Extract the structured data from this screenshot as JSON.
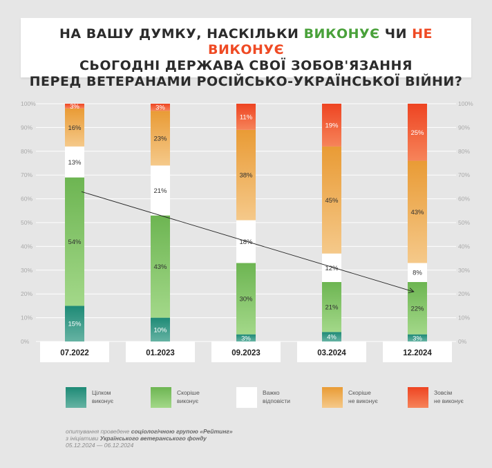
{
  "title": {
    "line1_part1": "НА ВАШУ ДУМКУ, НАСКІЛЬКИ ",
    "line1_green": "ВИКОНУЄ",
    "line1_part2": " ЧИ ",
    "line1_red": "НЕ ВИКОНУЄ",
    "line2": "СЬОГОДНІ ДЕРЖАВА СВОЇ ЗОБОВ'ЯЗАННЯ",
    "line3": "ПЕРЕД ВЕТЕРАНАМИ РОСІЙСЬКО-УКРАЇНСЬКОЇ ВІЙНИ?"
  },
  "colors": {
    "fully": "#3b9a86",
    "rather": "#7fc465",
    "hard": "#ffffff",
    "rather_not": "#eda94c",
    "not_at_all": "#f05a2e",
    "grid": "#ffffff",
    "axis_text": "#a9a9a9"
  },
  "legend": [
    {
      "key": "fully",
      "label": "Цілком\nвиконує"
    },
    {
      "key": "rather",
      "label": "Скоріше\nвиконує"
    },
    {
      "key": "hard",
      "label": "Важко\nвідповісти"
    },
    {
      "key": "rather_not",
      "label": "Скоріше\nне виконує"
    },
    {
      "key": "not_at_all",
      "label": "Зовсім\nне виконує"
    }
  ],
  "footer": {
    "line1_prefix": "опитування проведене ",
    "line1_bold": "соціологічною групою «Рейтинг»",
    "line2_prefix": "з ініціативи ",
    "line2_bold": "Українського ветеранського фонду",
    "line3": "05.12.2024 — 06.12.2024"
  },
  "chart_data": {
    "type": "bar",
    "stacked": true,
    "categories": [
      "07.2022",
      "01.2023",
      "09.2023",
      "03.2024",
      "12.2024"
    ],
    "series": [
      {
        "name": "Цілком виконує",
        "key": "fully",
        "values": [
          15,
          10,
          3,
          4,
          3
        ]
      },
      {
        "name": "Скоріше виконує",
        "key": "rather",
        "values": [
          54,
          43,
          30,
          21,
          22
        ]
      },
      {
        "name": "Важко відповісти",
        "key": "hard",
        "values": [
          13,
          21,
          18,
          12,
          8
        ]
      },
      {
        "name": "Скоріше не виконує",
        "key": "rather_not",
        "values": [
          16,
          23,
          38,
          45,
          43
        ]
      },
      {
        "name": "Зовсім не виконує",
        "key": "not_at_all",
        "values": [
          3,
          3,
          11,
          19,
          25
        ]
      }
    ],
    "ylim": [
      0,
      100
    ],
    "yticks": [
      "0%",
      "10%",
      "20%",
      "30%",
      "40%",
      "50%",
      "60%",
      "70%",
      "80%",
      "90%",
      "100%"
    ],
    "trend_line": {
      "from_category": "07.2022",
      "from_value": 63,
      "to_category": "12.2024",
      "to_value": 21
    },
    "grid": true,
    "legend_position": "bottom"
  }
}
